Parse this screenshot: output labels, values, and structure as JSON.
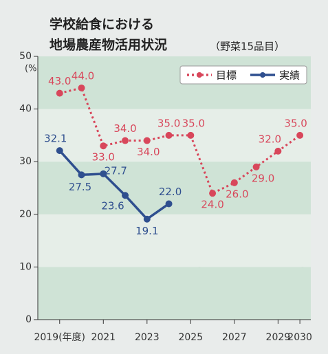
{
  "chart_data": {
    "type": "line",
    "title": [
      "学校給食における",
      "地場農産物活用状況"
    ],
    "subtitle": "（野菜15品目）",
    "y_unit": "(%)",
    "x": [
      2019,
      2020,
      2021,
      2022,
      2023,
      2024,
      2025,
      2026,
      2027,
      2028,
      2029,
      2030
    ],
    "series": [
      {
        "name": "目標",
        "color": "#d8475b",
        "dashed": true,
        "values": [
          43,
          44,
          33,
          34,
          34,
          35,
          35,
          24,
          26,
          29,
          32,
          35
        ],
        "value_labels": [
          "43.0",
          "44.0",
          "33.0",
          "34.0",
          "34.0",
          "35.0",
          "35.0",
          "24.0",
          "26.0",
          "29.0",
          "32.0",
          "35.0"
        ]
      },
      {
        "name": "実績",
        "color": "#2f4f8f",
        "dashed": false,
        "values": [
          32.1,
          27.5,
          27.7,
          23.6,
          19.1,
          22.0,
          null,
          null,
          null,
          null,
          null,
          null
        ],
        "value_labels": [
          "32.1",
          "27.5",
          "27.7",
          "23.6",
          "19.1",
          "22.0",
          null,
          null,
          null,
          null,
          null,
          null
        ]
      }
    ],
    "xlim": [
      2018,
      2030.5
    ],
    "xticks": [
      {
        "value": 2019,
        "label": "2019(年度)"
      },
      2021,
      2023,
      2025,
      2027,
      2029,
      2030
    ],
    "ylim": [
      0,
      50
    ],
    "yticks": [
      0,
      10,
      20,
      30,
      40,
      50
    ],
    "legend": "top-right"
  }
}
